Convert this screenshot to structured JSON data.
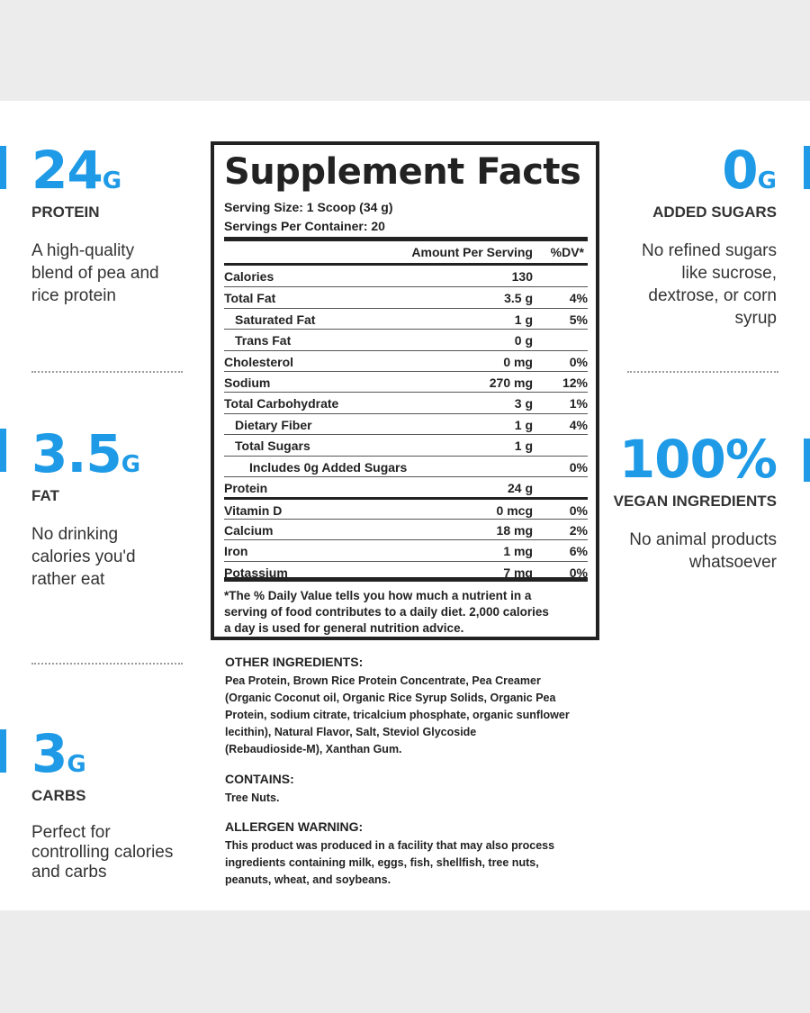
{
  "stats_left": [
    {
      "value": "24",
      "unit": "G",
      "label": "PROTEIN",
      "desc": [
        "A high-quality",
        "blend of pea and",
        "rice protein"
      ]
    },
    {
      "value": "3.5",
      "unit": "G",
      "label": "FAT",
      "desc": [
        "No drinking",
        "calories you'd",
        "rather eat"
      ]
    },
    {
      "value": "3",
      "unit": "G",
      "label": "CARBS",
      "desc": [
        "Perfect for",
        "controlling calories",
        "and carbs"
      ]
    }
  ],
  "stats_right": [
    {
      "value": "0",
      "unit": "G",
      "label": "ADDED SUGARS",
      "desc": [
        "No refined sugars",
        "like sucrose,",
        "dextrose, or corn",
        "syrup"
      ]
    },
    {
      "value": "100%",
      "unit": "",
      "label": "VEGAN INGREDIENTS",
      "desc": [
        "No animal products",
        "whatsoever"
      ]
    }
  ],
  "facts": {
    "title": "Supplement Facts",
    "serving_size": "Serving Size: 1 Scoop (34 g)",
    "servings_per_container": "Servings Per Container: 20",
    "col_amount": "Amount Per Serving",
    "col_dv": "%DV*",
    "rows": [
      {
        "name": "Calories",
        "amount": "130",
        "dv": "",
        "indent": 0
      },
      {
        "name": "Total Fat",
        "amount": "3.5 g",
        "dv": "4%",
        "indent": 0
      },
      {
        "name": "Saturated Fat",
        "amount": "1 g",
        "dv": "5%",
        "indent": 1
      },
      {
        "name": "Trans Fat",
        "amount": "0 g",
        "dv": "",
        "indent": 1
      },
      {
        "name": "Cholesterol",
        "amount": "0 mg",
        "dv": "0%",
        "indent": 0
      },
      {
        "name": "Sodium",
        "amount": "270 mg",
        "dv": "12%",
        "indent": 0
      },
      {
        "name": "Total Carbohydrate",
        "amount": "3 g",
        "dv": "1%",
        "indent": 0
      },
      {
        "name": "Dietary Fiber",
        "amount": "1 g",
        "dv": "4%",
        "indent": 1
      },
      {
        "name": "Total Sugars",
        "amount": "1 g",
        "dv": "",
        "indent": 1
      },
      {
        "name": "Includes 0g Added Sugars",
        "amount": "",
        "dv": "0%",
        "indent": 2
      },
      {
        "name": "Protein",
        "amount": "24 g",
        "dv": "",
        "indent": 0
      },
      {
        "name": "Vitamin D",
        "amount": "0 mcg",
        "dv": "0%",
        "indent": 0
      },
      {
        "name": "Calcium",
        "amount": "18 mg",
        "dv": "2%",
        "indent": 0
      },
      {
        "name": "Iron",
        "amount": "1 mg",
        "dv": "6%",
        "indent": 0
      },
      {
        "name": "Potassium",
        "amount": "7 mg",
        "dv": "0%",
        "indent": 0
      }
    ],
    "footnote": [
      "*The % Daily Value tells you how much a nutrient in a",
      "serving of food contributes to a daily diet. 2,000 calories",
      "a day is used for general nutrition advice."
    ]
  },
  "other_ingredients": {
    "heading": "OTHER INGREDIENTS:",
    "lines": [
      "Pea Protein, Brown Rice Protein Concentrate, Pea Creamer",
      "(Organic Coconut oil, Organic Rice Syrup Solids, Organic Pea",
      "Protein, sodium citrate, tricalcium phosphate, organic sunflower",
      "lecithin), Natural Flavor, Salt, Steviol Glycoside",
      "(Rebaudioside-M), Xanthan Gum."
    ]
  },
  "contains": {
    "heading": "CONTAINS:",
    "lines": [
      "Tree Nuts."
    ]
  },
  "allergen": {
    "heading": "ALLERGEN WARNING:",
    "lines": [
      "This product was produced in a facility that may also process",
      "ingredients containing milk, eggs, fish, shellfish, tree nuts,",
      "peanuts, wheat, and soybeans."
    ]
  },
  "colors": {
    "accent": "#1e9ae6",
    "text": "#222222",
    "background": "#ececec",
    "panel": "#ffffff"
  }
}
